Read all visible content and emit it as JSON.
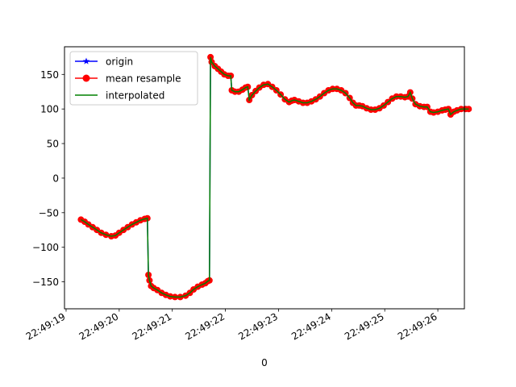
{
  "chart_data": {
    "type": "line",
    "xlabel": "0",
    "ylabel": "",
    "title": "",
    "x_ticks": [
      "22:49:19",
      "22:49:20",
      "22:49:21",
      "22:49:22",
      "22:49:23",
      "22:49:24",
      "22:49:25",
      "22:49:26"
    ],
    "x_tick_seconds": [
      19,
      20,
      21,
      22,
      23,
      24,
      25,
      26
    ],
    "y_ticks": [
      -150,
      -100,
      -50,
      0,
      50,
      100,
      150
    ],
    "xlim_seconds": [
      18.97,
      26.5
    ],
    "ylim": [
      -189,
      190
    ],
    "legend_placement": "upper-left",
    "series": [
      {
        "name": "origin",
        "color": "#0000ff",
        "marker": "star"
      },
      {
        "name": "mean resample",
        "color": "#ff0000",
        "marker": "circle"
      },
      {
        "name": "interpolated",
        "color": "#008000",
        "marker": "none"
      }
    ],
    "points": [
      [
        19.28,
        -60
      ],
      [
        19.35,
        -63
      ],
      [
        19.42,
        -67
      ],
      [
        19.5,
        -71
      ],
      [
        19.58,
        -75
      ],
      [
        19.66,
        -79
      ],
      [
        19.75,
        -82
      ],
      [
        19.85,
        -84
      ],
      [
        19.93,
        -83
      ],
      [
        20.0,
        -79
      ],
      [
        20.08,
        -75
      ],
      [
        20.16,
        -71
      ],
      [
        20.24,
        -67
      ],
      [
        20.32,
        -64
      ],
      [
        20.4,
        -61
      ],
      [
        20.48,
        -59
      ],
      [
        20.53,
        -58
      ],
      [
        20.55,
        -140
      ],
      [
        20.57,
        -148
      ],
      [
        20.6,
        -156
      ],
      [
        20.65,
        -159
      ],
      [
        20.72,
        -162
      ],
      [
        20.8,
        -166
      ],
      [
        20.88,
        -169
      ],
      [
        20.96,
        -171
      ],
      [
        21.05,
        -172
      ],
      [
        21.15,
        -172
      ],
      [
        21.25,
        -170
      ],
      [
        21.33,
        -166
      ],
      [
        21.4,
        -161
      ],
      [
        21.48,
        -157
      ],
      [
        21.56,
        -154
      ],
      [
        21.62,
        -152
      ],
      [
        21.67,
        -149
      ],
      [
        21.7,
        -148
      ],
      [
        21.72,
        175
      ],
      [
        21.74,
        168
      ],
      [
        21.8,
        162
      ],
      [
        21.86,
        158
      ],
      [
        21.92,
        154
      ],
      [
        21.98,
        150
      ],
      [
        22.05,
        148
      ],
      [
        22.1,
        148
      ],
      [
        22.12,
        127
      ],
      [
        22.18,
        125
      ],
      [
        22.25,
        125
      ],
      [
        22.32,
        128
      ],
      [
        22.38,
        131
      ],
      [
        22.42,
        132
      ],
      [
        22.45,
        113
      ],
      [
        22.5,
        120
      ],
      [
        22.57,
        126
      ],
      [
        22.64,
        131
      ],
      [
        22.72,
        135
      ],
      [
        22.8,
        136
      ],
      [
        22.88,
        132
      ],
      [
        22.96,
        127
      ],
      [
        23.04,
        121
      ],
      [
        23.12,
        114
      ],
      [
        23.2,
        110
      ],
      [
        23.25,
        112
      ],
      [
        23.3,
        113
      ],
      [
        23.38,
        111
      ],
      [
        23.46,
        109
      ],
      [
        23.54,
        109
      ],
      [
        23.62,
        111
      ],
      [
        23.7,
        114
      ],
      [
        23.78,
        118
      ],
      [
        23.86,
        123
      ],
      [
        23.94,
        127
      ],
      [
        24.02,
        129
      ],
      [
        24.1,
        129
      ],
      [
        24.18,
        127
      ],
      [
        24.26,
        123
      ],
      [
        24.34,
        116
      ],
      [
        24.4,
        109
      ],
      [
        24.46,
        105
      ],
      [
        24.52,
        105
      ],
      [
        24.58,
        104
      ],
      [
        24.66,
        101
      ],
      [
        24.74,
        99
      ],
      [
        24.82,
        99
      ],
      [
        24.9,
        101
      ],
      [
        24.98,
        105
      ],
      [
        25.06,
        110
      ],
      [
        25.14,
        115
      ],
      [
        25.22,
        118
      ],
      [
        25.3,
        118
      ],
      [
        25.38,
        117
      ],
      [
        25.44,
        118
      ],
      [
        25.48,
        124
      ],
      [
        25.52,
        115
      ],
      [
        25.58,
        107
      ],
      [
        25.66,
        104
      ],
      [
        25.74,
        103
      ],
      [
        25.8,
        103
      ],
      [
        25.86,
        96
      ],
      [
        25.92,
        95
      ],
      [
        26.0,
        96
      ],
      [
        26.08,
        98
      ],
      [
        26.14,
        99
      ],
      [
        26.2,
        100
      ],
      [
        26.24,
        92
      ],
      [
        26.3,
        96
      ],
      [
        26.36,
        98
      ],
      [
        26.44,
        100
      ],
      [
        26.52,
        100
      ],
      [
        26.58,
        100
      ]
    ]
  }
}
